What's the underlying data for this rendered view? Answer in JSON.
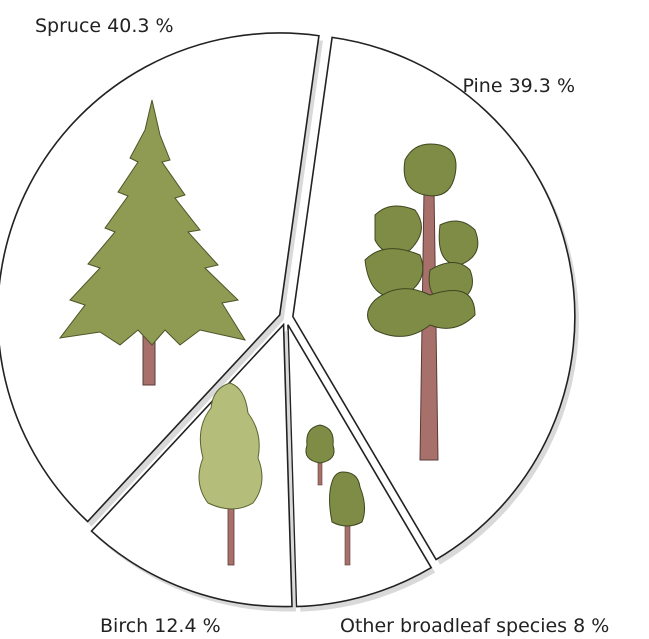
{
  "chart_data": {
    "type": "pie",
    "categories": [
      "Spruce",
      "Pine",
      "Birch",
      "Other broadleaf species"
    ],
    "values": [
      40.3,
      39.3,
      12.4,
      8
    ],
    "value_labels": [
      "40.3 %",
      "39.3 %",
      "12.4 %",
      "8 %"
    ]
  }
}
